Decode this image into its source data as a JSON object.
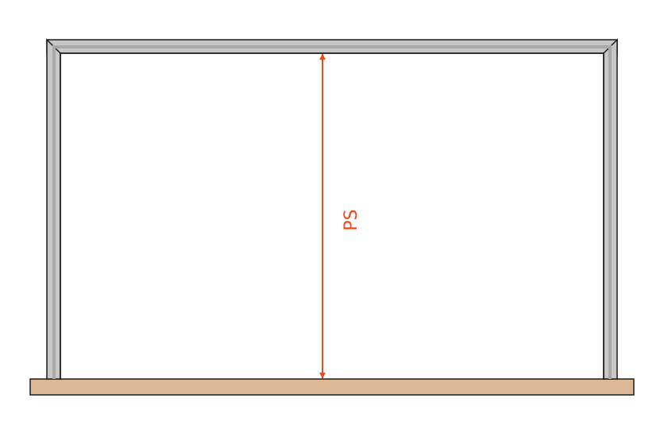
{
  "diagram": {
    "dimension_label": "PS",
    "colors": {
      "frame_fill": "#c7c7c7",
      "frame_inner": "#a9a9a9",
      "frame_stroke": "#1a1a1a",
      "floor_fill": "#dcb896",
      "floor_stroke": "#1a1a1a",
      "dimension_color": "#f04a1c",
      "background": "#ffffff"
    }
  }
}
